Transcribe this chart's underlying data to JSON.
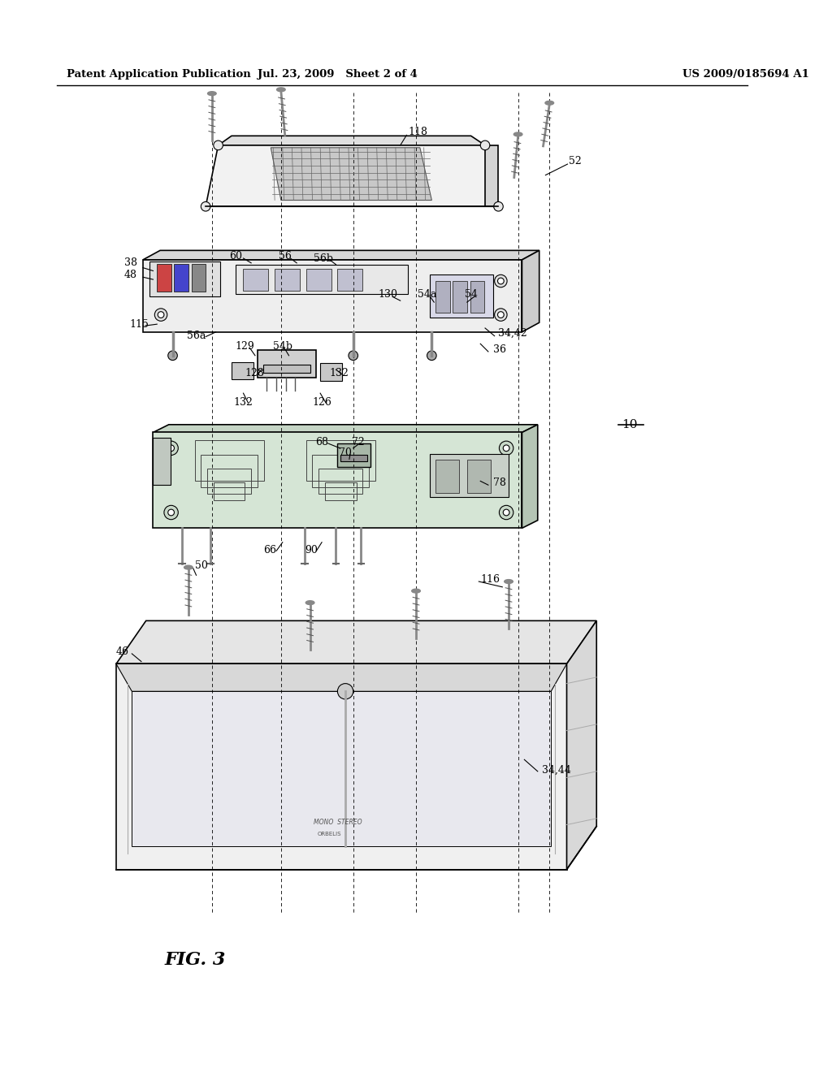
{
  "bg_color": "#ffffff",
  "line_color": "#000000",
  "header_left": "Patent Application Publication",
  "header_mid": "Jul. 23, 2009   Sheet 2 of 4",
  "header_right": "US 2009/0185694 A1",
  "fig_label": "FIG. 3",
  "ref_num": "10"
}
